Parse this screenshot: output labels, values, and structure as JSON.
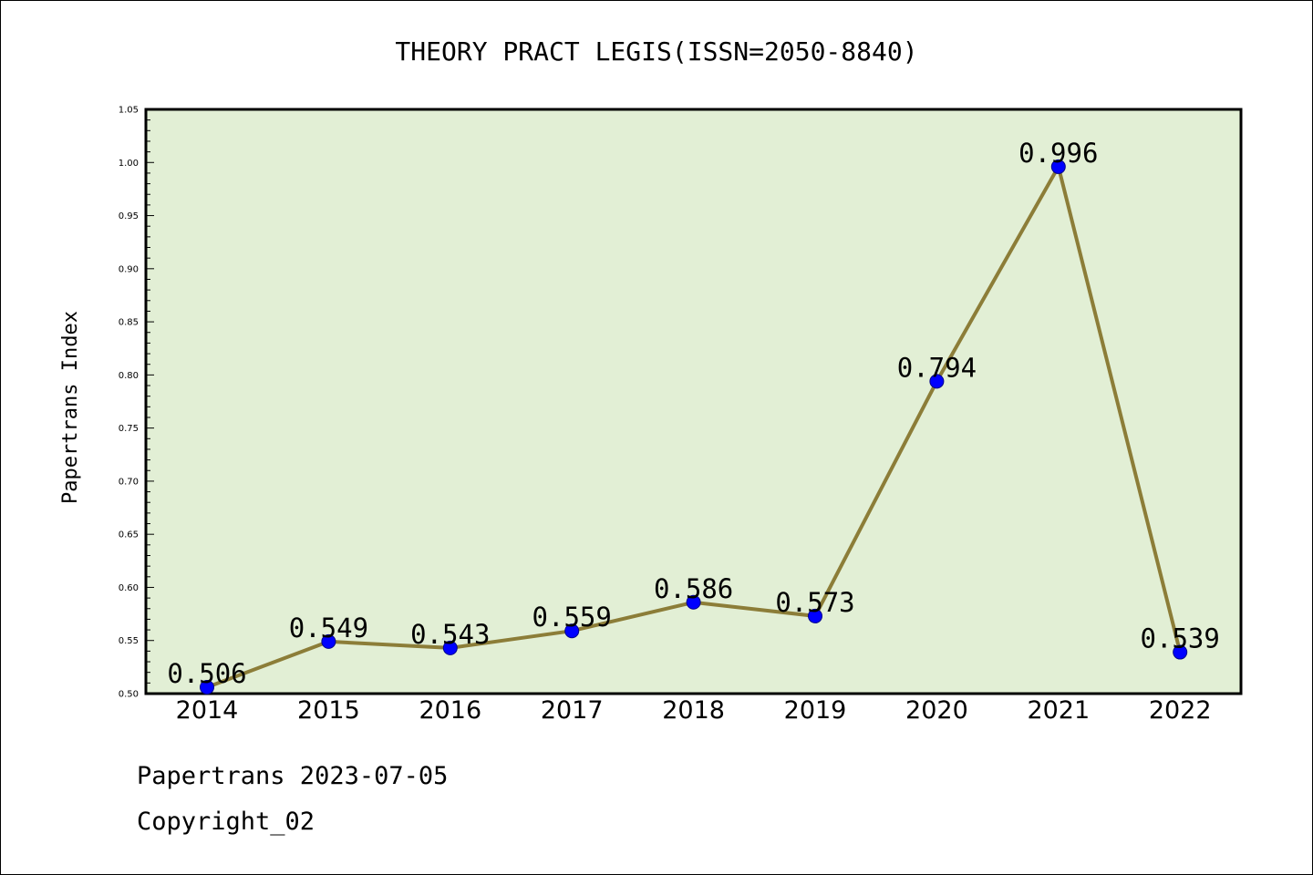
{
  "chart_data": {
    "type": "line",
    "title": "THEORY PRACT LEGIS(ISSN=2050-8840)",
    "ylabel": "Papertrans Index",
    "xlabel": "",
    "categories": [
      "2014",
      "2015",
      "2016",
      "2017",
      "2018",
      "2019",
      "2020",
      "2021",
      "2022"
    ],
    "series": [
      {
        "values": [
          0.506,
          0.549,
          0.543,
          0.559,
          0.586,
          0.573,
          0.794,
          0.996,
          0.539
        ]
      }
    ],
    "data_labels": [
      "0.506",
      "0.549",
      "0.543",
      "0.559",
      "0.586",
      "0.573",
      "0.794",
      "0.996",
      "0.539"
    ],
    "ylim": [
      0.5,
      1.05
    ],
    "yticks": [
      "0.50",
      "0.55",
      "0.60",
      "0.65",
      "0.70",
      "0.75",
      "0.80",
      "0.85",
      "0.90",
      "0.95",
      "1.00",
      "1.05"
    ],
    "grid": false,
    "colors": {
      "plot_bg": "#e2efd5",
      "line": "#8c7d38",
      "marker": "#0000ff"
    }
  },
  "footer": {
    "line1": "Papertrans 2023-07-05",
    "line2": "Copyright_02"
  }
}
